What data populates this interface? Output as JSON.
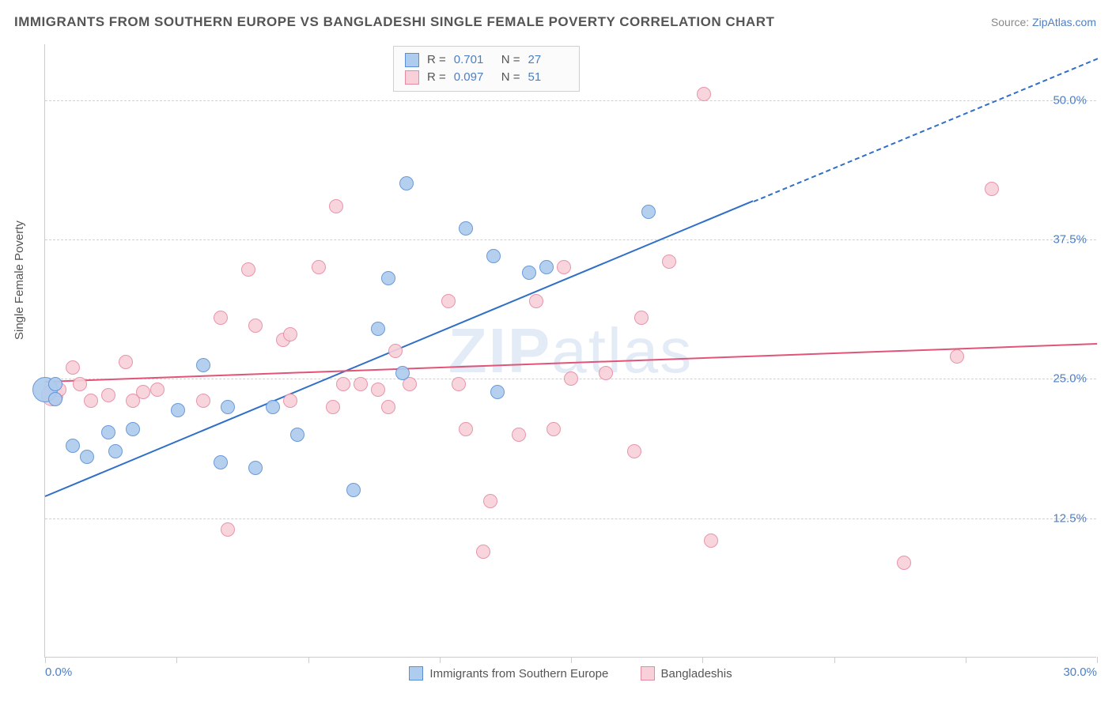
{
  "title": "IMMIGRANTS FROM SOUTHERN EUROPE VS BANGLADESHI SINGLE FEMALE POVERTY CORRELATION CHART",
  "source_label": "Source:",
  "source_name": "ZipAtlas.com",
  "y_axis_label": "Single Female Poverty",
  "watermark_a": "ZIP",
  "watermark_b": "atlas",
  "chart": {
    "type": "scatter",
    "xlim": [
      0,
      30
    ],
    "ylim": [
      0,
      55
    ],
    "x_ticks": [
      0,
      3.75,
      7.5,
      11.25,
      15,
      18.75,
      22.5,
      26.25,
      30
    ],
    "x_tick_labels": {
      "0": "0.0%",
      "30": "30.0%"
    },
    "y_gridlines": [
      12.5,
      25.0,
      37.5,
      50.0
    ],
    "y_tick_labels": [
      "12.5%",
      "25.0%",
      "37.5%",
      "50.0%"
    ],
    "background_color": "#ffffff",
    "grid_color": "#d0d0d0",
    "marker_radius": 9,
    "series": [
      {
        "id": "southern_europe",
        "label": "Immigrants from Southern Europe",
        "fill": "#aeccee",
        "stroke": "#5a8fd6",
        "line_color": "#2f6fc7",
        "r": "0.701",
        "n": "27",
        "trend": {
          "x1": 0,
          "y1": 14.5,
          "x2": 20.2,
          "y2": 41,
          "dash_x2": 30,
          "dash_y2": 53.8
        },
        "points": [
          [
            0,
            24.0,
            16
          ],
          [
            0.3,
            23.2
          ],
          [
            0.3,
            24.5
          ],
          [
            0.8,
            19.0
          ],
          [
            1.2,
            18.0
          ],
          [
            1.8,
            20.2
          ],
          [
            2.0,
            18.5
          ],
          [
            2.5,
            20.5
          ],
          [
            3.8,
            22.2
          ],
          [
            4.5,
            26.2
          ],
          [
            5.0,
            17.5
          ],
          [
            5.2,
            22.5
          ],
          [
            6.0,
            17.0
          ],
          [
            6.5,
            22.5
          ],
          [
            7.2,
            20.0
          ],
          [
            8.8,
            15.0
          ],
          [
            9.5,
            29.5
          ],
          [
            9.8,
            34.0
          ],
          [
            10.2,
            25.5
          ],
          [
            10.3,
            42.5
          ],
          [
            12.0,
            38.5
          ],
          [
            12.8,
            36.0
          ],
          [
            12.9,
            23.8
          ],
          [
            13.8,
            34.5
          ],
          [
            14.3,
            35.0
          ],
          [
            17.2,
            40.0
          ]
        ]
      },
      {
        "id": "bangladeshi",
        "label": "Bangladeshis",
        "fill": "#f8d0da",
        "stroke": "#e68aa1",
        "line_color": "#e05577",
        "r": "0.097",
        "n": "51",
        "trend": {
          "x1": 0,
          "y1": 24.8,
          "x2": 30,
          "y2": 28.2
        },
        "points": [
          [
            0.2,
            23.5,
            14
          ],
          [
            0.4,
            24.0
          ],
          [
            0.8,
            26.0
          ],
          [
            1.0,
            24.5
          ],
          [
            1.3,
            23.0
          ],
          [
            1.8,
            23.5
          ],
          [
            2.3,
            26.5
          ],
          [
            2.5,
            23.0
          ],
          [
            2.8,
            23.8
          ],
          [
            3.2,
            24.0
          ],
          [
            4.5,
            23.0
          ],
          [
            5.0,
            30.5
          ],
          [
            5.2,
            11.5
          ],
          [
            5.8,
            34.8
          ],
          [
            6.0,
            29.8
          ],
          [
            6.8,
            28.5
          ],
          [
            7.0,
            23.0
          ],
          [
            7.0,
            29.0
          ],
          [
            7.8,
            35.0
          ],
          [
            8.2,
            22.5
          ],
          [
            8.3,
            40.5
          ],
          [
            8.5,
            24.5
          ],
          [
            9.0,
            24.5
          ],
          [
            9.5,
            24.0
          ],
          [
            9.8,
            22.5
          ],
          [
            10.0,
            27.5
          ],
          [
            10.4,
            24.5
          ],
          [
            11.5,
            32.0
          ],
          [
            11.8,
            24.5
          ],
          [
            12.0,
            20.5
          ],
          [
            12.5,
            9.5
          ],
          [
            12.7,
            14.0
          ],
          [
            13.5,
            20.0
          ],
          [
            14.0,
            32.0
          ],
          [
            14.5,
            20.5
          ],
          [
            14.8,
            35.0
          ],
          [
            15.0,
            25.0
          ],
          [
            16.0,
            25.5
          ],
          [
            16.8,
            18.5
          ],
          [
            17.0,
            30.5
          ],
          [
            17.8,
            35.5
          ],
          [
            18.8,
            50.5
          ],
          [
            19.0,
            10.5
          ],
          [
            24.5,
            8.5
          ],
          [
            26.0,
            27.0
          ],
          [
            27.0,
            42.0
          ]
        ]
      }
    ]
  }
}
